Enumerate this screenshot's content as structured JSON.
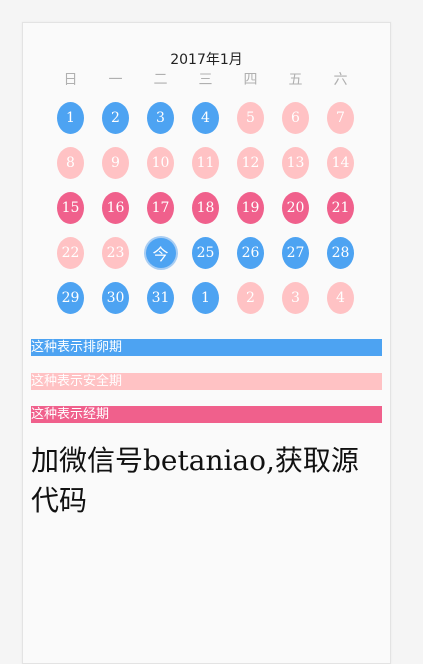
{
  "calendar": {
    "title": "2017年1月",
    "weekdays": [
      "日",
      "一",
      "二",
      "三",
      "四",
      "五",
      "六"
    ],
    "colors": {
      "ovulation": "#4da3f2",
      "safe": "#ffc2c4",
      "period": "#f0608c"
    },
    "days": [
      {
        "label": "1",
        "type": "ovulation"
      },
      {
        "label": "2",
        "type": "ovulation"
      },
      {
        "label": "3",
        "type": "ovulation"
      },
      {
        "label": "4",
        "type": "ovulation"
      },
      {
        "label": "5",
        "type": "safe"
      },
      {
        "label": "6",
        "type": "safe"
      },
      {
        "label": "7",
        "type": "safe"
      },
      {
        "label": "8",
        "type": "safe"
      },
      {
        "label": "9",
        "type": "safe"
      },
      {
        "label": "10",
        "type": "safe"
      },
      {
        "label": "11",
        "type": "safe"
      },
      {
        "label": "12",
        "type": "safe"
      },
      {
        "label": "13",
        "type": "safe"
      },
      {
        "label": "14",
        "type": "safe"
      },
      {
        "label": "15",
        "type": "period"
      },
      {
        "label": "16",
        "type": "period"
      },
      {
        "label": "17",
        "type": "period"
      },
      {
        "label": "18",
        "type": "period"
      },
      {
        "label": "19",
        "type": "period"
      },
      {
        "label": "20",
        "type": "period"
      },
      {
        "label": "21",
        "type": "period"
      },
      {
        "label": "22",
        "type": "safe"
      },
      {
        "label": "23",
        "type": "safe"
      },
      {
        "label": "今",
        "type": "today"
      },
      {
        "label": "25",
        "type": "ovulation"
      },
      {
        "label": "26",
        "type": "ovulation"
      },
      {
        "label": "27",
        "type": "ovulation"
      },
      {
        "label": "28",
        "type": "ovulation"
      },
      {
        "label": "29",
        "type": "ovulation"
      },
      {
        "label": "30",
        "type": "ovulation"
      },
      {
        "label": "31",
        "type": "ovulation"
      },
      {
        "label": "1",
        "type": "ovulation"
      },
      {
        "label": "2",
        "type": "safe"
      },
      {
        "label": "3",
        "type": "safe"
      },
      {
        "label": "4",
        "type": "safe"
      }
    ]
  },
  "legend": {
    "ovulation": "这种表示排卵期",
    "safe": "这种表示安全期",
    "period": "这种表示经期"
  },
  "promo": {
    "text": "加微信号betaniao,获取源代码"
  }
}
